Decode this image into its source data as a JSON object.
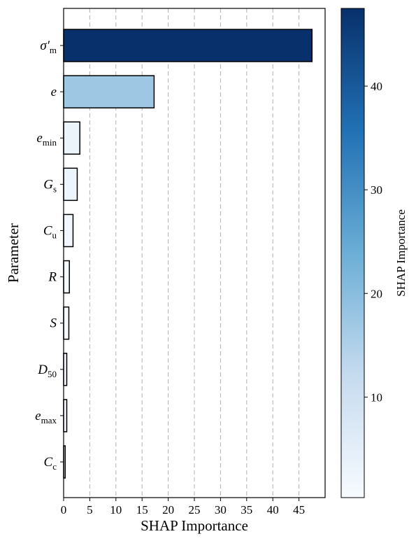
{
  "chart_data": {
    "type": "bar",
    "orientation": "horizontal",
    "categories": [
      "σ′m",
      "e",
      "emin",
      "Gs",
      "Cu",
      "R",
      "S",
      "D50",
      "emax",
      "Cc"
    ],
    "category_labels": [
      {
        "main": "σ′",
        "sub": "m"
      },
      {
        "main": "e",
        "sub": ""
      },
      {
        "main": "e",
        "sub": "min"
      },
      {
        "main": "G",
        "sub": "s"
      },
      {
        "main": "C",
        "sub": "u"
      },
      {
        "main": "R",
        "sub": ""
      },
      {
        "main": "S",
        "sub": ""
      },
      {
        "main": "D",
        "sub": "50"
      },
      {
        "main": "e",
        "sub": "max"
      },
      {
        "main": "C",
        "sub": "c"
      }
    ],
    "values": [
      47.5,
      17.3,
      3.1,
      2.6,
      1.8,
      1.1,
      1.0,
      0.6,
      0.6,
      0.3
    ],
    "xlabel": "SHAP Importance",
    "ylabel": "Parameter",
    "xlim": [
      0,
      50
    ],
    "xticks": [
      "0",
      "5",
      "10",
      "15",
      "20",
      "25",
      "30",
      "35",
      "40",
      "45"
    ],
    "grid": "x, dashed",
    "colormap": "Blues",
    "colorbar": {
      "label": "SHAP Importance",
      "range": [
        0.3,
        47.5
      ],
      "ticks": [
        "10",
        "20",
        "30",
        "40"
      ]
    },
    "colors": {
      "cmap_low": "#f7fbff",
      "cmap_q1": "#c6dbef",
      "cmap_mid": "#6baed6",
      "cmap_q3": "#2171b5",
      "cmap_high": "#08306b",
      "grid": "#b0b0b0",
      "edge": "#000000"
    }
  }
}
